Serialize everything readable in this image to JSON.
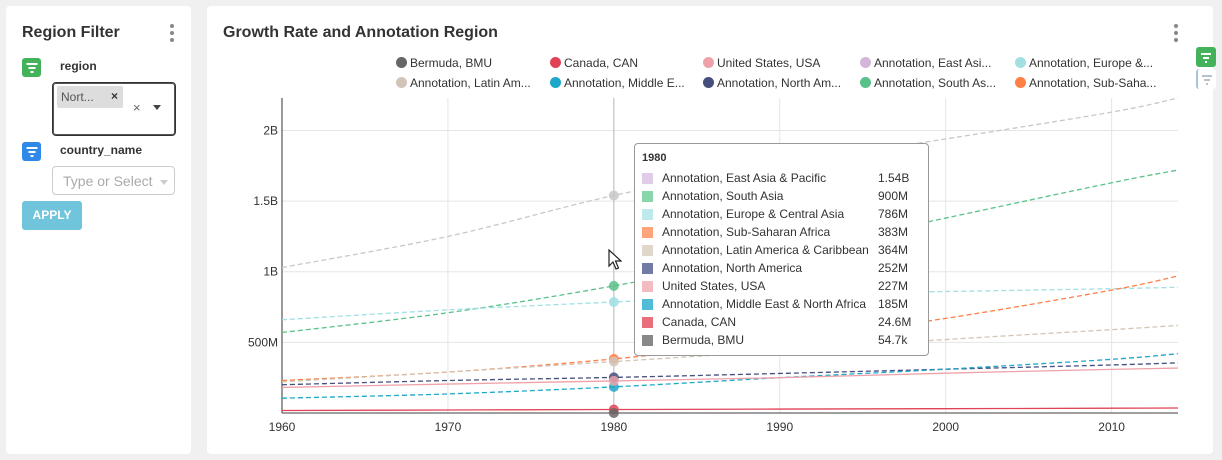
{
  "filter_panel": {
    "title": "Region Filter",
    "region": {
      "label": "region",
      "selected_tag": "Nort...",
      "tag_remove": "×",
      "clear": "×"
    },
    "country": {
      "label": "country_name",
      "placeholder": "Type or Select"
    },
    "apply_label": "APPLY",
    "badge_colors": {
      "region": "#44b25b",
      "country": "#2e89e8"
    }
  },
  "chart_panel": {
    "title": "Growth Rate and Annotation Region",
    "legend": [
      {
        "label": "Bermuda, BMU",
        "color": "#666666"
      },
      {
        "label": "Canada, CAN",
        "color": "#e04355"
      },
      {
        "label": "United States, USA",
        "color": "#efa1aa"
      },
      {
        "label": "Annotation, East Asi...",
        "color": "#d1b6da"
      },
      {
        "label": "Annotation, Europe &...",
        "color": "#a1dfe3"
      },
      {
        "label": "Annotation, Latin Am...",
        "color": "#d2c5b8"
      },
      {
        "label": "Annotation, Middle E...",
        "color": "#1fa7c9"
      },
      {
        "label": "Annotation, North Am...",
        "color": "#454e7c"
      },
      {
        "label": "Annotation, South As...",
        "color": "#5ac189"
      },
      {
        "label": "Annotation, Sub-Saha...",
        "color": "#ff7f44"
      }
    ],
    "tooltip": {
      "title": "1980",
      "rows": [
        {
          "name": "Annotation, East Asia & Pacific",
          "value": "1.54B",
          "color": "#e2cde8"
        },
        {
          "name": "Annotation, South Asia",
          "value": "900M",
          "color": "#8ad6ab"
        },
        {
          "name": "Annotation, Europe & Central Asia",
          "value": "786M",
          "color": "#bfeaec"
        },
        {
          "name": "Annotation, Sub-Saharan Africa",
          "value": "383M",
          "color": "#ffa37a"
        },
        {
          "name": "Annotation, Latin America & Caribbean",
          "value": "364M",
          "color": "#e0d6cc"
        },
        {
          "name": "Annotation, North America",
          "value": "252M",
          "color": "#727ba3"
        },
        {
          "name": "United States, USA",
          "value": "227M",
          "color": "#f4bcc2"
        },
        {
          "name": "Annotation, Middle East & North Africa",
          "value": "185M",
          "color": "#52bcd6"
        },
        {
          "name": "Canada, CAN",
          "value": "24.6M",
          "color": "#ea6d7c"
        },
        {
          "name": "Bermuda, BMU",
          "value": "54.7k",
          "color": "#888888"
        }
      ]
    }
  },
  "chart_data": {
    "type": "line",
    "x": [
      1960,
      1970,
      1980,
      1990,
      2000,
      2010,
      2014
    ],
    "x_ticks": [
      "1960",
      "1970",
      "1980",
      "1990",
      "2000",
      "2010"
    ],
    "y_ticks": [
      "500M",
      "1B",
      "1.5B",
      "2B"
    ],
    "xlim": [
      1960,
      2014
    ],
    "ylim": [
      0,
      2230000000
    ],
    "grid": true,
    "legend_position": "top",
    "hover_x": 1980,
    "series": [
      {
        "name": "Annotation, East Asia & Pacific",
        "style": "dashed",
        "color": "#c8c8c8",
        "values": [
          1030000000,
          1250000000,
          1540000000,
          1760000000,
          1940000000,
          2130000000,
          2230000000
        ]
      },
      {
        "name": "Annotation, South Asia",
        "style": "dashed",
        "color": "#5ac189",
        "values": [
          570000000,
          710000000,
          900000000,
          1130000000,
          1380000000,
          1630000000,
          1720000000
        ]
      },
      {
        "name": "Annotation, Europe & Central Asia",
        "style": "dashed",
        "color": "#a1dfe3",
        "values": [
          660000000,
          730000000,
          786000000,
          840000000,
          860000000,
          880000000,
          890000000
        ]
      },
      {
        "name": "Annotation, Sub-Saharan Africa",
        "style": "dashed",
        "color": "#ff7f44",
        "values": [
          230000000,
          290000000,
          383000000,
          510000000,
          670000000,
          870000000,
          970000000
        ]
      },
      {
        "name": "Annotation, Latin America & Caribbean",
        "style": "dashed",
        "color": "#d2c5b8",
        "values": [
          220000000,
          290000000,
          364000000,
          440000000,
          520000000,
          590000000,
          620000000
        ]
      },
      {
        "name": "Annotation, North America",
        "style": "dashed",
        "color": "#454e7c",
        "values": [
          200000000,
          230000000,
          252000000,
          280000000,
          310000000,
          340000000,
          355000000
        ]
      },
      {
        "name": "Annotation, Middle East & North Africa",
        "style": "dashed",
        "color": "#1fa7c9",
        "values": [
          105000000,
          135000000,
          185000000,
          250000000,
          310000000,
          380000000,
          420000000
        ]
      },
      {
        "name": "United States, USA",
        "style": "solid",
        "color": "#efa1aa",
        "values": [
          181000000,
          205000000,
          227000000,
          250000000,
          282000000,
          309000000,
          318000000
        ]
      },
      {
        "name": "Canada, CAN",
        "style": "solid",
        "color": "#e04355",
        "values": [
          17900000,
          21300000,
          24600000,
          27800000,
          30700000,
          34000000,
          35500000
        ]
      },
      {
        "name": "Bermuda, BMU",
        "style": "solid",
        "color": "#666666",
        "values": [
          44400,
          52700,
          54700,
          58000,
          61800,
          65100,
          65100
        ]
      }
    ]
  },
  "side_toolbar": {
    "icons": [
      "filter-active-icon",
      "filter-inactive-icon"
    ],
    "active_color": "#44b25b",
    "inactive_color": "#c8d0d8"
  }
}
